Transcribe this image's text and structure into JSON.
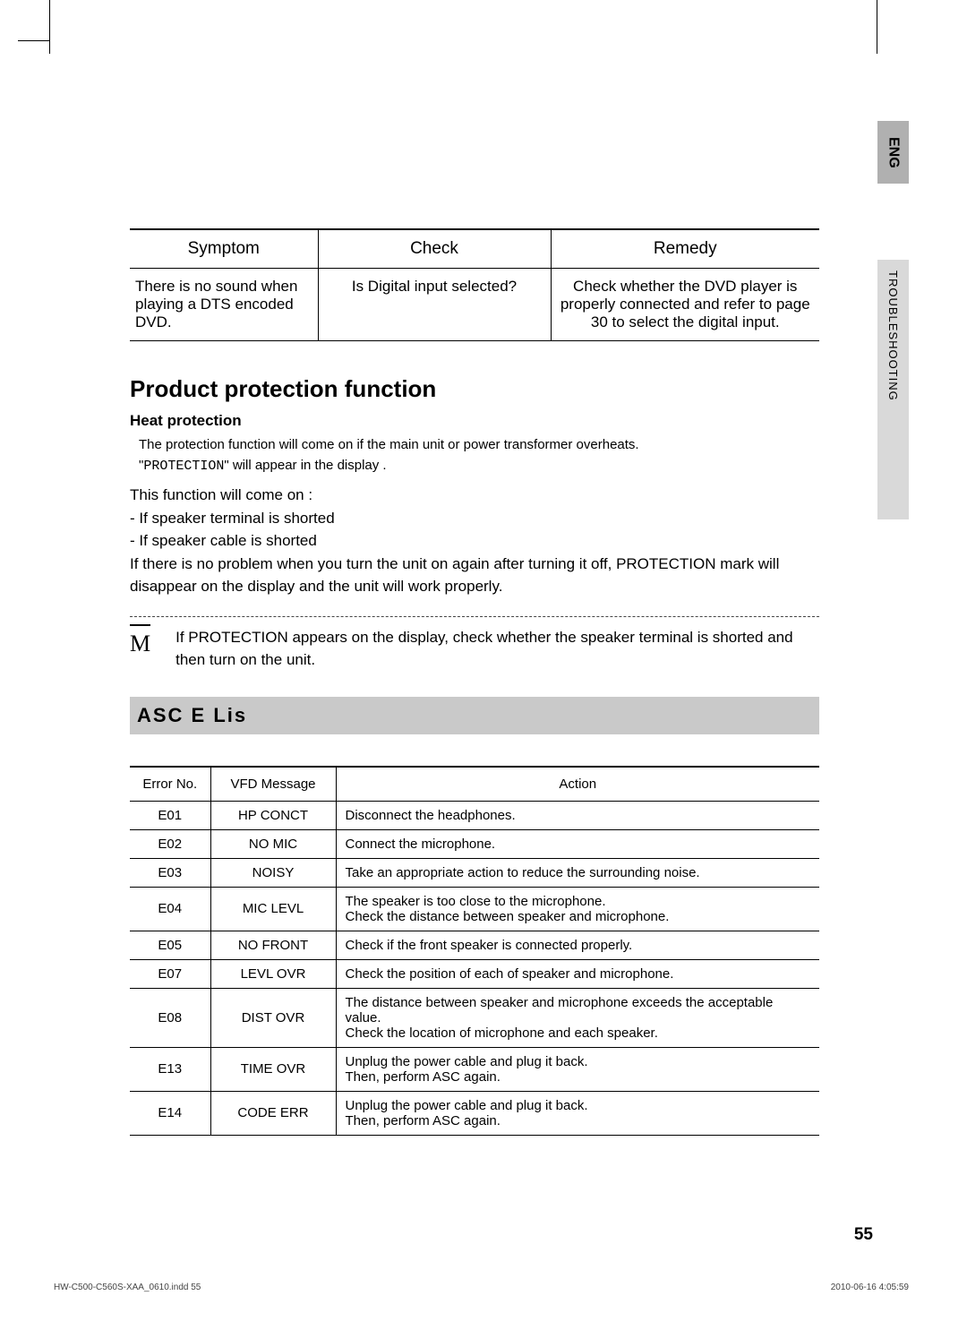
{
  "lang_tab": "ENG",
  "section_tab": "TROUBLESHOOTING",
  "symptom_table": {
    "headers": {
      "symptom": "Symptom",
      "check": "Check",
      "remedy": "Remedy"
    },
    "row": {
      "symptom": "There is no sound when playing a DTS encoded DVD.",
      "check": "Is Digital input selected?",
      "remedy": "Check whether the DVD player is properly connected and refer to page 30 to select the digital input."
    }
  },
  "ppf": {
    "title": "Product protection function",
    "heat_title": "Heat protection",
    "line1": "The protection function will come on if the main unit or power transformer overheats.",
    "line2_prefix": "\"",
    "line2_mono": "PROTECTION",
    "line2_suffix": "\" will appear in the display .",
    "cond_intro": "This function will come on :",
    "cond_a": "- If speaker terminal is shorted",
    "cond_b": "- If speaker cable is shorted",
    "cond_c": "If there is no problem when you turn the unit on again after turning it off, PROTECTION mark will disappear on the display and the unit will work properly.",
    "note_sym": "M",
    "note_text": "If PROTECTION appears on the display, check whether the speaker terminal is shorted and then turn on the unit."
  },
  "asc": {
    "band_title": "ASC E Lis",
    "headers": {
      "errno": "Error No.",
      "vfd": "VFD Message",
      "action": "Action"
    },
    "rows": [
      {
        "errno": "E01",
        "vfd": "HP CONCT",
        "action": "Disconnect the headphones."
      },
      {
        "errno": "E02",
        "vfd": "NO MIC",
        "action": "Connect the microphone."
      },
      {
        "errno": "E03",
        "vfd": "NOISY",
        "action": "Take an appropriate action to reduce the surrounding noise."
      },
      {
        "errno": "E04",
        "vfd": "MIC LEVL",
        "action": "The speaker is too close to the microphone.\nCheck the distance between speaker and microphone."
      },
      {
        "errno": "E05",
        "vfd": "NO FRONT",
        "action": "Check if the front speaker is connected properly."
      },
      {
        "errno": "E07",
        "vfd": "LEVL OVR",
        "action": "Check the position of each of speaker and microphone."
      },
      {
        "errno": "E08",
        "vfd": "DIST OVR",
        "action": "The distance between speaker and microphone exceeds the acceptable value.\nCheck the location of microphone and each speaker."
      },
      {
        "errno": "E13",
        "vfd": "TIME OVR",
        "action": "Unplug the power cable and plug it back.\nThen, perform ASC again."
      },
      {
        "errno": "E14",
        "vfd": "CODE ERR",
        "action": "Unplug the power cable and plug it back.\nThen, perform ASC again."
      }
    ]
  },
  "page_number": "55",
  "footer": {
    "left": "HW-C500-C560S-XAA_0610.indd   55",
    "right": "2010-06-16    4:05:59"
  },
  "colors": {
    "tab_dark": "#b0b0b0",
    "tab_light": "#d9d9d9",
    "band": "#c9c9c9",
    "text": "#000000",
    "bg": "#ffffff"
  }
}
